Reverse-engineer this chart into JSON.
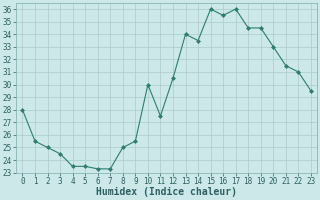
{
  "x": [
    0,
    1,
    2,
    3,
    4,
    5,
    6,
    7,
    8,
    9,
    10,
    11,
    12,
    13,
    14,
    15,
    16,
    17,
    18,
    19,
    20,
    21,
    22,
    23
  ],
  "y": [
    28,
    25.5,
    25,
    24.5,
    23.5,
    23.5,
    23.3,
    23.3,
    25,
    25.5,
    30,
    27.5,
    30.5,
    34,
    33.5,
    36,
    35.5,
    36,
    34.5,
    34.5,
    33,
    31.5,
    31,
    29.5
  ],
  "line_color": "#2e7d6e",
  "marker": "D",
  "marker_size": 2,
  "bg_color": "#cce8e8",
  "grid_color": "#aacccc",
  "xlabel": "Humidex (Indice chaleur)",
  "ylim": [
    23,
    36.5
  ],
  "xlim": [
    -0.5,
    23.5
  ],
  "yticks": [
    23,
    24,
    25,
    26,
    27,
    28,
    29,
    30,
    31,
    32,
    33,
    34,
    35,
    36
  ],
  "xticks": [
    0,
    1,
    2,
    3,
    4,
    5,
    6,
    7,
    8,
    9,
    10,
    11,
    12,
    13,
    14,
    15,
    16,
    17,
    18,
    19,
    20,
    21,
    22,
    23
  ],
  "tick_fontsize": 5.5,
  "xlabel_fontsize": 7
}
